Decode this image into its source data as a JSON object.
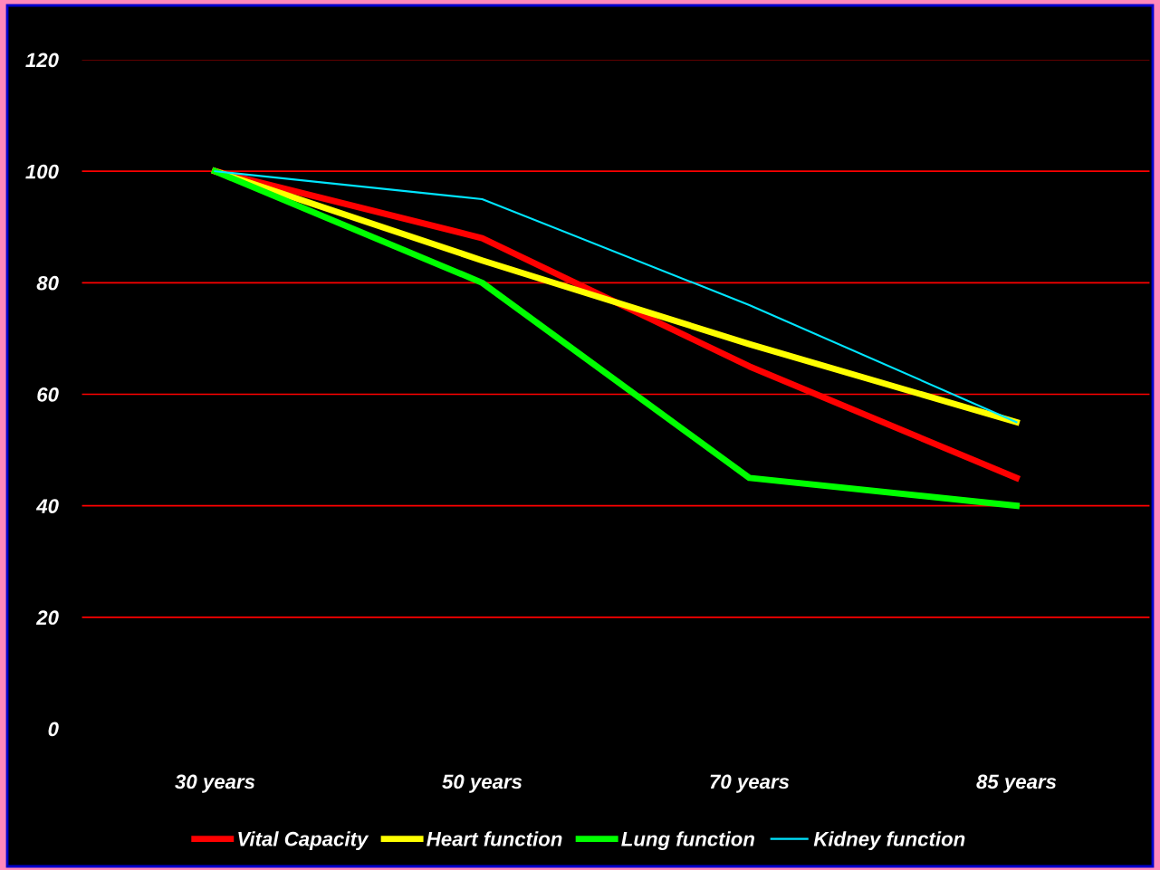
{
  "chart_data": {
    "type": "line",
    "categories": [
      "30 years",
      "50 years",
      "70 years",
      "85 years"
    ],
    "series": [
      {
        "name": "Vital Capacity",
        "color": "#ff0000",
        "values": [
          100,
          88,
          65,
          45
        ]
      },
      {
        "name": "Heart function",
        "color": "#ffff00",
        "values": [
          100,
          84,
          69,
          55
        ]
      },
      {
        "name": "Lung function",
        "color": "#00ff00",
        "values": [
          100,
          80,
          45,
          40
        ]
      },
      {
        "name": "Kidney function",
        "color": "#00e5ff",
        "values": [
          100,
          95,
          76,
          55
        ]
      }
    ],
    "ylim": [
      0,
      120
    ],
    "yticks": [
      0,
      20,
      40,
      60,
      80,
      100,
      120
    ],
    "grid": "y",
    "legend": "bottom",
    "marker": "none",
    "line_style": "solid"
  }
}
